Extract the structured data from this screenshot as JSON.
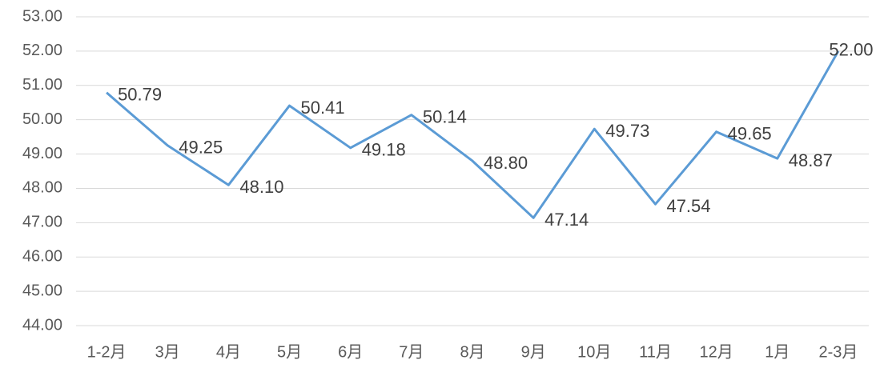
{
  "chart_data": {
    "type": "line",
    "categories": [
      "1-2月",
      "3月",
      "4月",
      "5月",
      "6月",
      "7月",
      "8月",
      "9月",
      "10月",
      "11月",
      "12月",
      "1月",
      "2-3月"
    ],
    "values": [
      50.79,
      49.25,
      48.1,
      50.41,
      49.18,
      50.14,
      48.8,
      47.14,
      49.73,
      47.54,
      49.65,
      48.87,
      52
    ],
    "value_labels": [
      "50.79",
      "49.25",
      "48.10",
      "50.41",
      "49.18",
      "50.14",
      "48.80",
      "47.14",
      "49.73",
      "47.54",
      "49.65",
      "48.87",
      "52.00"
    ],
    "color": "#5b9bd5",
    "ylim": [
      44,
      53
    ],
    "yticks": [
      {
        "value": 44,
        "label": "44.00"
      },
      {
        "value": 45,
        "label": "45.00"
      },
      {
        "value": 46,
        "label": "46.00"
      },
      {
        "value": 47,
        "label": "47.00"
      },
      {
        "value": 48,
        "label": "48.00"
      },
      {
        "value": 49,
        "label": "49.00"
      },
      {
        "value": 50,
        "label": "50.00"
      },
      {
        "value": 51,
        "label": "51.00"
      },
      {
        "value": 52,
        "label": "52.00"
      },
      {
        "value": 53,
        "label": "53.00"
      }
    ],
    "grid": true
  }
}
